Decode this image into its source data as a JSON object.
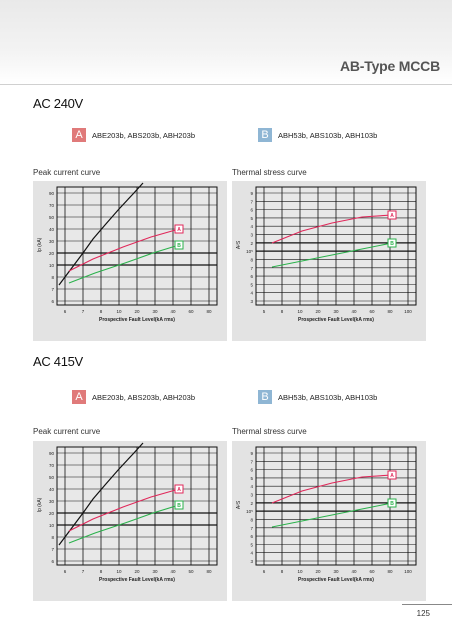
{
  "header": {
    "title": "AB-Type MCCB"
  },
  "sections": [
    {
      "title": "AC 240V",
      "models_a": "ABE203b, ABS203b, ABH203b",
      "models_b": "ABH53b, ABS103b, ABH103b",
      "peak_title": "Peak current curve",
      "thermal_title": "Thermal stress curve"
    },
    {
      "title": "AC 415V",
      "models_a": "ABE203b, ABS203b, ABH203b",
      "models_b": "ABH53b, ABS103b, ABH103b",
      "peak_title": "Peak current curve",
      "thermal_title": "Thermal stress curve"
    }
  ],
  "badges": {
    "a": "A",
    "b": "B"
  },
  "chart_data": [
    {
      "type": "line",
      "ylabel": "Ip (kA)",
      "xlabel": "Prospective Fault Level(kA rms)",
      "x_ticks": [
        "6",
        "7",
        "8",
        "10",
        "20",
        "30",
        "40",
        "60",
        "80"
      ],
      "y_ticks": [
        "90",
        "70",
        "50",
        "40",
        "30",
        "20",
        "10",
        "8",
        "7",
        "6"
      ],
      "series": [
        {
          "name": "A",
          "color": "#e0285a"
        },
        {
          "name": "B",
          "color": "#2bb24c"
        }
      ]
    },
    {
      "type": "line",
      "ylabel": "A²S",
      "xlabel": "Prospective Fault Level(kA rms)",
      "x_ticks": [
        "5",
        "8",
        "10",
        "20",
        "30",
        "40",
        "60",
        "80",
        "100"
      ],
      "y_ticks": [
        "9",
        "7",
        "6",
        "5",
        "4",
        "3",
        "2",
        "10⁵",
        "8",
        "7",
        "6",
        "5",
        "4",
        "3"
      ],
      "series": [
        {
          "name": "A",
          "color": "#e0285a"
        },
        {
          "name": "B",
          "color": "#2bb24c"
        }
      ]
    },
    {
      "type": "line",
      "ylabel": "Ip (kA)",
      "xlabel": "Prospective Fault Level(kA rms)",
      "x_ticks": [
        "6",
        "7",
        "8",
        "10",
        "20",
        "30",
        "40",
        "50",
        "80"
      ],
      "y_ticks": [
        "90",
        "70",
        "50",
        "40",
        "30",
        "20",
        "10",
        "8",
        "7",
        "6"
      ],
      "series": [
        {
          "name": "A",
          "color": "#e0285a"
        },
        {
          "name": "B",
          "color": "#2bb24c"
        }
      ]
    },
    {
      "type": "line",
      "ylabel": "A²S",
      "xlabel": "Prospective Fault Level(kA rms)",
      "x_ticks": [
        "6",
        "8",
        "10",
        "20",
        "30",
        "40",
        "60",
        "80",
        "100"
      ],
      "y_ticks": [
        "9",
        "7",
        "6",
        "5",
        "4",
        "3",
        "2",
        "10⁵",
        "8",
        "7",
        "6",
        "5",
        "4",
        "3"
      ],
      "series": [
        {
          "name": "A",
          "color": "#e0285a"
        },
        {
          "name": "B",
          "color": "#2bb24c"
        }
      ]
    }
  ],
  "page_number": "125"
}
